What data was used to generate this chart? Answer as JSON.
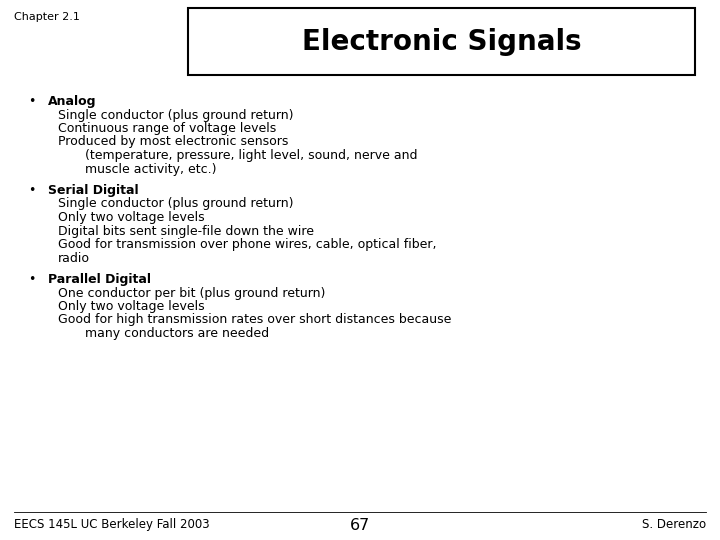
{
  "chapter_label": "Chapter 2.1",
  "title": "Electronic Signals",
  "background_color": "#ffffff",
  "title_fontsize": 20,
  "chapter_fontsize": 8,
  "body_fontsize": 9,
  "footer_fontsize": 8.5,
  "footer_left": "EECS 145L UC Berkeley Fall 2003",
  "footer_center": "67",
  "footer_right": "S. Derenzo",
  "bullets": [
    {
      "header": "Analog",
      "lines": [
        {
          "text": "Single conductor (plus ground return)",
          "indent": false
        },
        {
          "text": "Continuous range of voltage levels",
          "indent": false
        },
        {
          "text": "Produced by most electronic sensors",
          "indent": false
        },
        {
          "text": "(temperature, pressure, light level, sound, nerve and",
          "indent": true
        },
        {
          "text": "muscle activity, etc.)",
          "indent": true
        }
      ]
    },
    {
      "header": "Serial Digital",
      "lines": [
        {
          "text": "Single conductor (plus ground return)",
          "indent": false
        },
        {
          "text": "Only two voltage levels",
          "indent": false
        },
        {
          "text": "Digital bits sent single-file down the wire",
          "indent": false
        },
        {
          "text": "Good for transmission over phone wires, cable, optical fiber,",
          "indent": false
        },
        {
          "text": "radio",
          "indent": false
        }
      ]
    },
    {
      "header": "Parallel Digital",
      "lines": [
        {
          "text": "One conductor per bit (plus ground return)",
          "indent": false
        },
        {
          "text": "Only two voltage levels",
          "indent": false
        },
        {
          "text": "Good for high transmission rates over short distances because",
          "indent": false
        },
        {
          "text": "many conductors are needed",
          "indent": true
        }
      ]
    }
  ]
}
